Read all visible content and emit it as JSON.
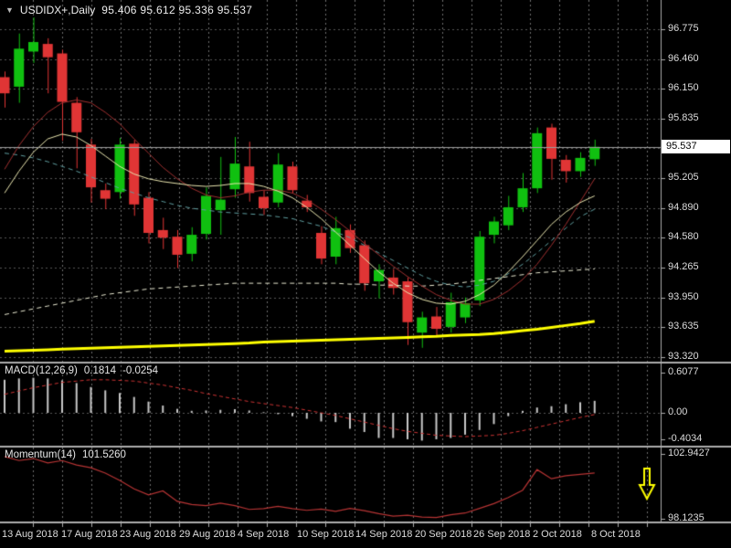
{
  "title": {
    "dropdown_icon": "▼",
    "symbol_period": "USDIDX+,Daily",
    "ohlc": "95.406 95.612 95.336 95.537"
  },
  "macd_panel": {
    "name": "MACD(12,26,9)",
    "value": "0.1814",
    "signal": "-0.0254"
  },
  "momentum_panel": {
    "name": "Momentum(14)",
    "value": "101.5260"
  },
  "price_axis": {
    "labels": [
      "96.775",
      "96.460",
      "96.150",
      "95.835",
      "95.205",
      "94.890",
      "94.580",
      "94.265",
      "93.950",
      "93.635",
      "93.320"
    ],
    "current": "95.537"
  },
  "macd_axis": {
    "labels": [
      "0.6077",
      "0.00",
      "-0.4034"
    ]
  },
  "momentum_axis": {
    "labels": [
      "102.9427",
      "98.1235"
    ]
  },
  "date_axis": {
    "labels": [
      "13 Aug 2018",
      "17 Aug 2018",
      "23 Aug 2018",
      "29 Aug 2018",
      "4 Sep 2018",
      "10 Sep 2018",
      "14 Sep 2018",
      "20 Sep 2018",
      "26 Sep 2018",
      "2 Oct 2018",
      "8 Oct 2018"
    ]
  },
  "colors": {
    "background": "#000000",
    "grid_v": "#6f6f6f",
    "grid_h": "#575757",
    "candle_up": "#10C010",
    "candle_down": "#E03535",
    "ma_red": "#A03030",
    "ma_gold": "#E8E4AE",
    "ma_teal": "#5F9EA0",
    "ma_ivory": "#EAEAD2",
    "ma_yellow": "#FFFF00",
    "macd_hist": "#C8C8C8",
    "macd_signal": "#CC3333",
    "momentum": "#B63434",
    "separator": "#ABABAB",
    "axis_text": "#DCDCDC",
    "price_line": "#9E9E9E",
    "price_box_bg": "#FFFFFF",
    "price_box_text": "#000000",
    "arrow": "#FFFF00"
  },
  "chart_data": {
    "type": "candlestick",
    "symbol": "USDIDX+",
    "timeframe": "Daily",
    "title": "USDIDX+,Daily 95.406 95.612 95.336 95.537",
    "last_bar": {
      "open": 95.406,
      "high": 95.612,
      "low": 95.336,
      "close": 95.537
    },
    "current_price": 95.537,
    "x_labels": [
      "13 Aug 2018",
      "17 Aug 2018",
      "23 Aug 2018",
      "29 Aug 2018",
      "4 Sep 2018",
      "10 Sep 2018",
      "14 Sep 2018",
      "20 Sep 2018",
      "26 Sep 2018",
      "2 Oct 2018",
      "8 Oct 2018"
    ],
    "ylim": [
      93.32,
      96.775
    ],
    "price_gridlines": [
      96.775,
      96.46,
      96.15,
      95.835,
      95.52,
      95.205,
      94.89,
      94.58,
      94.265,
      93.95,
      93.635,
      93.32
    ],
    "ohlc": [
      [
        96.27,
        96.33,
        95.95,
        96.1
      ],
      [
        96.17,
        96.73,
        96.0,
        96.57
      ],
      [
        96.54,
        96.9,
        96.42,
        96.64
      ],
      [
        96.62,
        96.68,
        96.1,
        96.48
      ],
      [
        96.52,
        96.56,
        95.6,
        96.01
      ],
      [
        96.0,
        96.06,
        95.31,
        95.69
      ],
      [
        95.56,
        95.62,
        94.95,
        95.11
      ],
      [
        95.08,
        95.15,
        94.88,
        94.99
      ],
      [
        95.06,
        95.63,
        94.99,
        95.56
      ],
      [
        95.57,
        95.61,
        94.81,
        94.93
      ],
      [
        95.0,
        95.06,
        94.52,
        94.63
      ],
      [
        94.66,
        94.79,
        94.46,
        94.58
      ],
      [
        94.59,
        94.66,
        94.26,
        94.4
      ],
      [
        94.41,
        94.69,
        94.33,
        94.61
      ],
      [
        94.62,
        95.11,
        94.56,
        95.02
      ],
      [
        94.87,
        95.43,
        94.61,
        94.98
      ],
      [
        95.09,
        95.64,
        95.0,
        95.36
      ],
      [
        95.33,
        95.59,
        94.96,
        95.05
      ],
      [
        95.01,
        95.08,
        94.82,
        94.89
      ],
      [
        94.95,
        95.47,
        94.9,
        95.35
      ],
      [
        95.33,
        95.38,
        95.05,
        95.08
      ],
      [
        94.97,
        95.03,
        94.85,
        94.9
      ],
      [
        94.63,
        94.7,
        94.3,
        94.36
      ],
      [
        94.38,
        94.8,
        94.3,
        94.68
      ],
      [
        94.66,
        94.72,
        94.42,
        94.47
      ],
      [
        94.5,
        94.55,
        94.02,
        94.1
      ],
      [
        94.12,
        94.3,
        93.94,
        94.24
      ],
      [
        94.16,
        94.25,
        93.98,
        94.05
      ],
      [
        94.12,
        94.16,
        93.45,
        93.69
      ],
      [
        93.58,
        93.8,
        93.42,
        93.74
      ],
      [
        93.75,
        93.85,
        93.55,
        93.62
      ],
      [
        93.64,
        94.0,
        93.58,
        93.9
      ],
      [
        93.74,
        93.95,
        93.68,
        93.89
      ],
      [
        93.92,
        94.65,
        93.86,
        94.59
      ],
      [
        94.61,
        94.8,
        94.52,
        94.75
      ],
      [
        94.71,
        95.02,
        94.66,
        94.9
      ],
      [
        94.9,
        95.26,
        94.85,
        95.1
      ],
      [
        95.1,
        95.74,
        95.05,
        95.68
      ],
      [
        95.74,
        95.78,
        95.19,
        95.41
      ],
      [
        95.4,
        95.45,
        95.16,
        95.28
      ],
      [
        95.28,
        95.48,
        95.22,
        95.42
      ],
      [
        95.406,
        95.612,
        95.336,
        95.537
      ]
    ],
    "overlays": [
      {
        "name": "ma-thick-yellow",
        "style": "solid",
        "width": 3,
        "color": "#FFFF00",
        "values": [
          93.385,
          93.39,
          93.395,
          93.4,
          93.405,
          93.41,
          93.415,
          93.42,
          93.425,
          93.43,
          93.435,
          93.44,
          93.445,
          93.45,
          93.455,
          93.46,
          93.465,
          93.47,
          93.48,
          93.485,
          93.49,
          93.495,
          93.5,
          93.505,
          93.51,
          93.515,
          93.52,
          93.525,
          93.53,
          93.535,
          93.54,
          93.55,
          93.555,
          93.56,
          93.57,
          93.585,
          93.6,
          93.615,
          93.635,
          93.655,
          93.675,
          93.7
        ]
      },
      {
        "name": "ma-ivory-dashed",
        "style": "dashed",
        "width": 1,
        "color": "#EAEAD2",
        "values": [
          93.77,
          93.8,
          93.83,
          93.86,
          93.89,
          93.92,
          93.95,
          93.98,
          94.0,
          94.02,
          94.04,
          94.05,
          94.06,
          94.07,
          94.08,
          94.09,
          94.1,
          94.1,
          94.1,
          94.1,
          94.1,
          94.1,
          94.1,
          94.1,
          94.09,
          94.09,
          94.08,
          94.08,
          94.07,
          94.07,
          94.08,
          94.09,
          94.11,
          94.13,
          94.15,
          94.17,
          94.19,
          94.21,
          94.22,
          94.23,
          94.24,
          94.25
        ]
      },
      {
        "name": "ma-teal-dashed",
        "style": "dashed",
        "width": 1,
        "color": "#5F9EA0",
        "values": [
          95.47,
          95.45,
          95.42,
          95.38,
          95.33,
          95.28,
          95.22,
          95.16,
          95.1,
          95.05,
          95.0,
          94.96,
          94.92,
          94.89,
          94.87,
          94.85,
          94.84,
          94.83,
          94.82,
          94.8,
          94.78,
          94.74,
          94.7,
          94.64,
          94.58,
          94.5,
          94.42,
          94.34,
          94.26,
          94.18,
          94.12,
          94.08,
          94.06,
          94.08,
          94.12,
          94.2,
          94.3,
          94.42,
          94.55,
          94.68,
          94.8,
          94.88
        ]
      },
      {
        "name": "ma-red",
        "style": "solid",
        "width": 1,
        "color": "#A03030",
        "values": [
          95.3,
          95.55,
          95.75,
          95.9,
          96.0,
          96.03,
          96.0,
          95.9,
          95.78,
          95.62,
          95.47,
          95.32,
          95.2,
          95.1,
          95.03,
          95.0,
          95.02,
          95.06,
          95.08,
          95.08,
          95.05,
          94.98,
          94.88,
          94.77,
          94.65,
          94.52,
          94.4,
          94.28,
          94.17,
          94.07,
          93.98,
          93.92,
          93.88,
          93.88,
          93.93,
          94.02,
          94.14,
          94.3,
          94.5,
          94.72,
          94.96,
          95.2
        ]
      },
      {
        "name": "ma-lightgold",
        "style": "solid",
        "width": 1,
        "color": "#E8E4AE",
        "values": [
          95.05,
          95.28,
          95.48,
          95.62,
          95.67,
          95.64,
          95.55,
          95.44,
          95.33,
          95.25,
          95.2,
          95.17,
          95.15,
          95.13,
          95.12,
          95.13,
          95.15,
          95.15,
          95.12,
          95.07,
          95.0,
          94.9,
          94.78,
          94.64,
          94.5,
          94.36,
          94.22,
          94.1,
          94.0,
          93.93,
          93.89,
          93.88,
          93.91,
          93.98,
          94.08,
          94.22,
          94.38,
          94.55,
          94.72,
          94.85,
          94.95,
          95.02
        ]
      }
    ],
    "indicators": {
      "macd": {
        "label": "MACD(12,26,9)",
        "current": 0.1814,
        "signal_current": -0.0254,
        "axis": [
          0.6077,
          0.0,
          -0.4034
        ],
        "histogram": [
          0.5,
          0.52,
          0.53,
          0.52,
          0.49,
          0.45,
          0.39,
          0.34,
          0.3,
          0.24,
          0.17,
          0.11,
          0.06,
          0.03,
          0.035,
          0.045,
          0.055,
          0.035,
          0.01,
          -0.02,
          -0.05,
          -0.09,
          -0.13,
          -0.14,
          -0.24,
          -0.29,
          -0.38,
          -0.38,
          -0.4,
          -0.42,
          -0.4,
          -0.38,
          -0.33,
          -0.26,
          -0.17,
          -0.05,
          0.03,
          0.08,
          0.1,
          0.13,
          0.16,
          0.1814
        ],
        "signal": [
          0.28,
          0.33,
          0.38,
          0.42,
          0.46,
          0.48,
          0.5,
          0.5,
          0.49,
          0.48,
          0.45,
          0.42,
          0.38,
          0.34,
          0.29,
          0.25,
          0.21,
          0.17,
          0.14,
          0.11,
          0.08,
          0.04,
          0.0,
          -0.04,
          -0.09,
          -0.14,
          -0.19,
          -0.24,
          -0.28,
          -0.31,
          -0.34,
          -0.35,
          -0.36,
          -0.35,
          -0.34,
          -0.31,
          -0.27,
          -0.22,
          -0.17,
          -0.12,
          -0.07,
          -0.0254
        ]
      },
      "momentum": {
        "label": "Momentum(14)",
        "current": 101.526,
        "axis": [
          102.9427,
          98.1235
        ],
        "values": [
          102.75,
          102.45,
          102.6,
          102.28,
          102.45,
          102.12,
          101.92,
          101.52,
          100.98,
          100.35,
          99.9,
          100.2,
          99.42,
          99.18,
          99.1,
          99.28,
          99.1,
          98.82,
          98.88,
          99.05,
          98.88,
          98.75,
          98.85,
          98.68,
          98.9,
          98.72,
          98.5,
          98.32,
          98.38,
          98.25,
          98.22,
          98.42,
          98.55,
          98.9,
          99.25,
          99.7,
          100.25,
          101.78,
          101.1,
          101.32,
          101.42,
          101.526
        ]
      }
    },
    "objects": [
      {
        "type": "arrow-down",
        "color": "#FFFF00",
        "x": 708,
        "y_tip": 546
      }
    ]
  }
}
